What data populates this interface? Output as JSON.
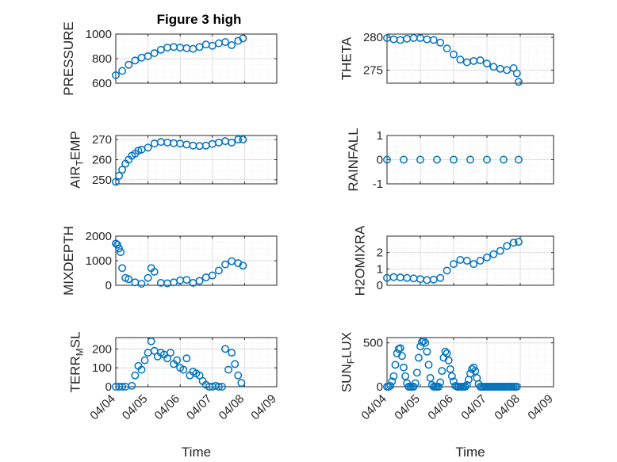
{
  "figure_title": "Figure 3 high",
  "colors": {
    "marker": "#0072bd",
    "axis": "#262626",
    "grid": "#dfdfdf",
    "minorgrid": "#e8e8e8"
  },
  "chart_data": [
    {
      "id": "pressure",
      "type": "scatter",
      "ylabel": "PRESSURE",
      "ylim": [
        600,
        1000
      ],
      "yticks": [
        600,
        800,
        1000
      ],
      "xlabel": "",
      "xticklabels": [],
      "x": [
        0,
        0.2,
        0.4,
        0.6,
        0.8,
        1.0,
        1.2,
        1.4,
        1.6,
        1.8,
        2.0,
        2.2,
        2.4,
        2.6,
        2.8,
        3.0,
        3.2,
        3.4,
        3.6,
        3.8,
        3.95
      ],
      "y": [
        665,
        700,
        750,
        785,
        808,
        820,
        845,
        872,
        890,
        895,
        890,
        885,
        880,
        895,
        915,
        905,
        925,
        935,
        910,
        945,
        965
      ]
    },
    {
      "id": "theta",
      "type": "scatter",
      "ylabel": "THETA",
      "ylim": [
        273,
        280.5
      ],
      "yticks": [
        275,
        280
      ],
      "xlabel": "",
      "xticklabels": [],
      "x": [
        0,
        0.2,
        0.4,
        0.6,
        0.8,
        1.0,
        1.2,
        1.4,
        1.6,
        1.8,
        2.0,
        2.2,
        2.4,
        2.6,
        2.8,
        3.0,
        3.2,
        3.4,
        3.6,
        3.8,
        3.9,
        3.95
      ],
      "y": [
        279.9,
        279.7,
        279.6,
        279.8,
        279.9,
        279.9,
        279.7,
        279.6,
        279.2,
        278.3,
        277.4,
        276.6,
        276.2,
        276.4,
        276.5,
        276.0,
        275.5,
        275.2,
        275.0,
        275.3,
        274.5,
        273.2
      ]
    },
    {
      "id": "air_temp",
      "type": "scatter",
      "ylabel": "AIR_T_EMP",
      "ylim": [
        248,
        272
      ],
      "yticks": [
        250,
        260,
        270
      ],
      "xlabel": "",
      "xticklabels": [],
      "x": [
        0,
        0.1,
        0.2,
        0.3,
        0.4,
        0.5,
        0.6,
        0.7,
        0.8,
        1.0,
        1.2,
        1.4,
        1.6,
        1.8,
        2.0,
        2.2,
        2.4,
        2.6,
        2.8,
        3.0,
        3.2,
        3.4,
        3.6,
        3.8,
        3.95
      ],
      "y": [
        249,
        252,
        255,
        258,
        260,
        262,
        263,
        264.5,
        265,
        266,
        268,
        268.8,
        268.5,
        268.2,
        268,
        267.5,
        267,
        266.8,
        267,
        267.8,
        268.5,
        269.2,
        268.5,
        270,
        270
      ]
    },
    {
      "id": "rainfall",
      "type": "scatter",
      "ylabel": "RAINFALL",
      "ylim": [
        -1,
        1
      ],
      "yticks": [
        -1,
        0,
        1
      ],
      "xlabel": "",
      "xticklabels": [],
      "x": [
        0,
        0.5,
        1.0,
        1.5,
        2.0,
        2.5,
        3.0,
        3.5,
        3.95
      ],
      "y": [
        0,
        0,
        0,
        0,
        0,
        0,
        0,
        0,
        0
      ]
    },
    {
      "id": "mixdepth",
      "type": "scatter",
      "ylabel": "MIXDEPTH",
      "ylim": [
        0,
        2000
      ],
      "yticks": [
        0,
        1000,
        2000
      ],
      "xlabel": "",
      "xticklabels": [],
      "x": [
        0,
        0.05,
        0.1,
        0.15,
        0.2,
        0.3,
        0.4,
        0.6,
        0.8,
        1.0,
        1.1,
        1.2,
        1.4,
        1.6,
        1.8,
        2.0,
        2.2,
        2.4,
        2.6,
        2.8,
        3.0,
        3.2,
        3.4,
        3.6,
        3.8,
        3.95
      ],
      "y": [
        1700,
        1650,
        1500,
        1350,
        700,
        300,
        250,
        120,
        60,
        300,
        700,
        550,
        100,
        80,
        120,
        200,
        220,
        100,
        180,
        320,
        400,
        600,
        850,
        980,
        900,
        800
      ]
    },
    {
      "id": "h2omixra",
      "type": "scatter",
      "ylabel": "H2OMIXRA",
      "ylim": [
        0,
        3
      ],
      "yticks": [
        0,
        1,
        2
      ],
      "xlabel": "",
      "xticklabels": [],
      "x": [
        0,
        0.2,
        0.4,
        0.6,
        0.8,
        1.0,
        1.2,
        1.4,
        1.6,
        1.8,
        2.0,
        2.2,
        2.4,
        2.6,
        2.8,
        3.0,
        3.2,
        3.4,
        3.6,
        3.8,
        3.95
      ],
      "y": [
        0.45,
        0.5,
        0.48,
        0.45,
        0.42,
        0.38,
        0.32,
        0.35,
        0.45,
        0.9,
        1.3,
        1.55,
        1.5,
        1.3,
        1.5,
        1.7,
        1.9,
        2.1,
        2.4,
        2.6,
        2.65
      ]
    },
    {
      "id": "terr_msl",
      "type": "scatter",
      "ylabel": "TERR_M_SL",
      "ylim": [
        0,
        260
      ],
      "yticks": [
        0,
        100,
        200
      ],
      "xlabel": "Time",
      "xticklabels": [
        "04/04",
        "04/05",
        "04/06",
        "04/07",
        "04/08",
        "04/09"
      ],
      "x": [
        0,
        0.1,
        0.2,
        0.3,
        0.5,
        0.6,
        0.7,
        0.8,
        0.9,
        1.0,
        1.1,
        1.2,
        1.3,
        1.4,
        1.5,
        1.6,
        1.7,
        1.8,
        1.9,
        2.0,
        2.1,
        2.2,
        2.3,
        2.4,
        2.5,
        2.6,
        2.7,
        2.8,
        2.9,
        3.0,
        3.1,
        3.2,
        3.3,
        3.4,
        3.5,
        3.6,
        3.7,
        3.8,
        3.9
      ],
      "y": [
        0,
        0,
        0,
        0,
        5,
        60,
        110,
        90,
        140,
        180,
        240,
        190,
        160,
        180,
        170,
        150,
        180,
        120,
        140,
        100,
        90,
        150,
        60,
        80,
        70,
        60,
        30,
        10,
        0,
        0,
        5,
        0,
        0,
        200,
        90,
        180,
        120,
        60,
        20
      ]
    },
    {
      "id": "sun_flux",
      "type": "scatter",
      "ylabel": "SUN_F_LUX",
      "ylim": [
        0,
        560
      ],
      "yticks": [
        0,
        500
      ],
      "xlabel": "Time",
      "xticklabels": [
        "04/04",
        "04/05",
        "04/06",
        "04/07",
        "04/08",
        "04/09"
      ],
      "x": [
        0,
        0.05,
        0.1,
        0.15,
        0.2,
        0.25,
        0.3,
        0.35,
        0.4,
        0.45,
        0.5,
        0.55,
        0.6,
        0.65,
        0.7,
        0.75,
        0.8,
        0.85,
        0.9,
        0.95,
        1.0,
        1.05,
        1.1,
        1.15,
        1.2,
        1.25,
        1.3,
        1.35,
        1.4,
        1.45,
        1.5,
        1.55,
        1.6,
        1.65,
        1.7,
        1.75,
        1.8,
        1.85,
        1.9,
        1.95,
        2.0,
        2.05,
        2.1,
        2.15,
        2.2,
        2.25,
        2.3,
        2.35,
        2.4,
        2.45,
        2.5,
        2.55,
        2.6,
        2.65,
        2.7,
        2.75,
        2.8,
        2.85,
        2.9,
        2.95,
        3.0,
        3.05,
        3.1,
        3.15,
        3.2,
        3.25,
        3.3,
        3.35,
        3.4,
        3.45,
        3.5,
        3.55,
        3.6,
        3.65,
        3.7,
        3.75,
        3.8,
        3.85,
        3.9
      ],
      "y": [
        0,
        0,
        10,
        60,
        120,
        250,
        380,
        430,
        440,
        350,
        220,
        120,
        40,
        0,
        0,
        0,
        0,
        40,
        160,
        330,
        460,
        510,
        520,
        500,
        400,
        250,
        100,
        20,
        0,
        0,
        0,
        0,
        50,
        180,
        330,
        400,
        380,
        300,
        200,
        120,
        60,
        10,
        0,
        0,
        0,
        0,
        0,
        0,
        20,
        80,
        150,
        200,
        220,
        180,
        100,
        30,
        0,
        0,
        0,
        0,
        0,
        0,
        0,
        0,
        0,
        0,
        0,
        0,
        0,
        0,
        0,
        0,
        0,
        0,
        0,
        0,
        0,
        0,
        0
      ]
    }
  ]
}
